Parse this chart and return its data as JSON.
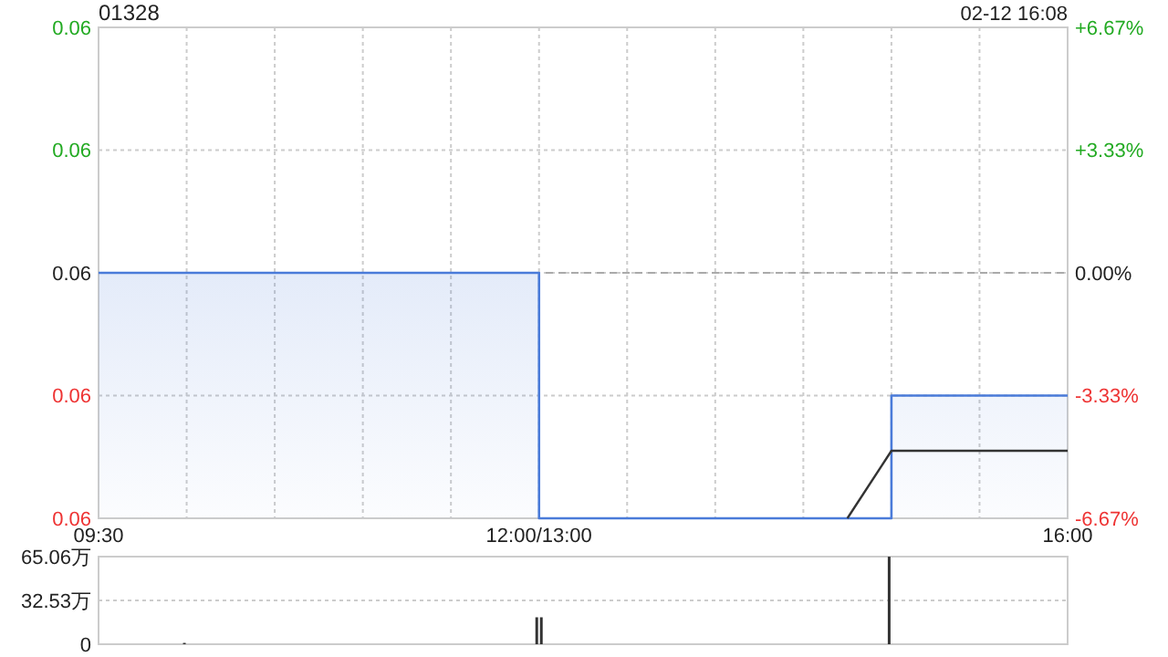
{
  "chart_data": [
    {
      "type": "area",
      "title": "01328",
      "annotations": [
        "02-12 16:08"
      ],
      "categories": [
        "09:30",
        null,
        null,
        null,
        null,
        null,
        null,
        null,
        null,
        null,
        "12:00/13:00",
        null,
        null,
        null,
        null,
        null,
        null,
        null,
        null,
        null,
        null,
        null,
        "16:00"
      ],
      "ylim": [
        0.056,
        0.064
      ],
      "yticks": [
        {
          "value": 0.056,
          "label": "0.06"
        },
        {
          "value": 0.058,
          "label": "0.06"
        },
        {
          "value": 0.06,
          "label": "0.06"
        },
        {
          "value": 0.062,
          "label": "0.06"
        },
        {
          "value": 0.064,
          "label": "0.06"
        }
      ],
      "y2lim": [
        -6.67,
        6.67
      ],
      "y2ticks": [
        {
          "value": -6.67,
          "label": "-6.67%"
        },
        {
          "value": -3.33,
          "label": "-3.33%"
        },
        {
          "value": 0,
          "label": "0.00%"
        },
        {
          "value": 3.33,
          "label": "+3.33%"
        },
        {
          "value": 6.67,
          "label": "+6.67%"
        }
      ],
      "grid": true,
      "ref_lines": [
        {
          "axis": "y2",
          "value": 0,
          "line_style": "dashed",
          "color": "#aaaaaa"
        }
      ],
      "series": [
        {
          "type": "area",
          "color": "#4a7bd9",
          "values": [
            0.06,
            0.06,
            0.06,
            0.06,
            0.06,
            0.06,
            0.06,
            0.06,
            0.06,
            0.06,
            0.056,
            0.056,
            0.056,
            0.056,
            0.056,
            0.056,
            0.056,
            0.056,
            0.058,
            0.058,
            0.058,
            0.058,
            0.058
          ]
        },
        {
          "type": "line",
          "color": "#333333",
          "values": [
            null,
            null,
            null,
            null,
            null,
            null,
            null,
            null,
            null,
            null,
            null,
            null,
            null,
            null,
            null,
            null,
            null,
            0.056,
            0.0571,
            0.0571,
            0.0571,
            0.0571,
            0.0571
          ]
        }
      ]
    },
    {
      "type": "bar",
      "tick_labels": "y",
      "categories": [
        null,
        null,
        null,
        null,
        null,
        null,
        null,
        null,
        null,
        null,
        null,
        null,
        null,
        null,
        null,
        null,
        null,
        null,
        null,
        null,
        null,
        null,
        null
      ],
      "ylim": [
        0,
        65.06
      ],
      "yticks": [
        0,
        {
          "value": 32.53,
          "label": "32.53万"
        },
        {
          "value": 65.06,
          "label": "65.06万"
        }
      ],
      "grid": "y",
      "series": [
        {
          "color": "#333333",
          "values": [
            null,
            null,
            1,
            null,
            null,
            null,
            null,
            null,
            null,
            null,
            20,
            null,
            null,
            null,
            null,
            null,
            null,
            null,
            65,
            null,
            null,
            null,
            null
          ]
        },
        {
          "color": "#333333",
          "values": [
            null,
            null,
            null,
            null,
            null,
            null,
            null,
            null,
            null,
            null,
            20,
            null,
            null,
            null,
            null,
            null,
            null,
            null,
            null,
            null,
            null,
            null,
            null
          ]
        }
      ]
    }
  ]
}
